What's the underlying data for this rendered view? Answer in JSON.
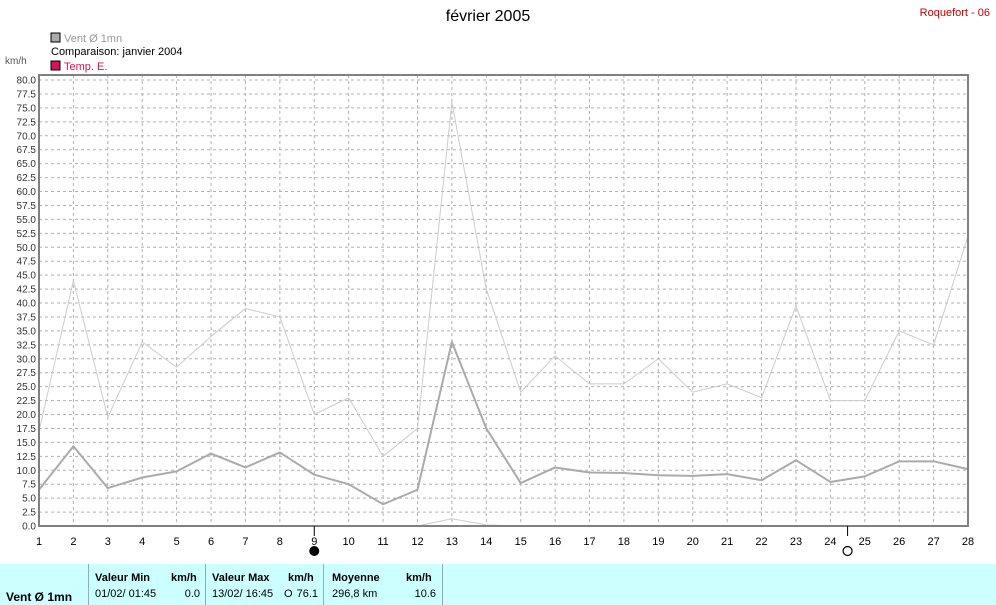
{
  "title": "février 2005",
  "station": "Roquefort - 06",
  "legend": [
    {
      "label": "Vent Ø 1mn",
      "color": "#aaaaaa",
      "text_color": "#999999"
    },
    {
      "label": "Comparaison: janvier 2004",
      "color": null,
      "text_color": "#000000"
    },
    {
      "label": "Temp. E.",
      "color": "#d4145a",
      "text_color": "#d4145a"
    }
  ],
  "chart_data": {
    "type": "line",
    "ylabel": "km/h",
    "ylim": [
      0,
      80
    ],
    "ytick_step": 2.5,
    "x": [
      1,
      2,
      3,
      4,
      5,
      6,
      7,
      8,
      9,
      10,
      11,
      12,
      13,
      14,
      15,
      16,
      17,
      18,
      19,
      20,
      21,
      22,
      23,
      24,
      25,
      26,
      27,
      28
    ],
    "xlim": [
      1,
      28
    ],
    "grid": true,
    "series": [
      {
        "name": "Vent Ø 1mn",
        "color": "#aaaaaa",
        "width": 2,
        "values": [
          6.5,
          14.3,
          6.8,
          8.7,
          9.8,
          13.0,
          10.5,
          13.2,
          9.2,
          7.5,
          3.9,
          6.5,
          33.0,
          17.5,
          7.7,
          10.5,
          9.6,
          9.5,
          9.1,
          9.0,
          9.3,
          8.2,
          11.8,
          7.9,
          8.9,
          11.6,
          11.6,
          10.2
        ]
      },
      {
        "name": "Comparaison: janvier 2004",
        "color": "#cccccc",
        "width": 1,
        "values": [
          17.0,
          44.0,
          19.5,
          33.0,
          28.5,
          34.0,
          39.0,
          37.5,
          20.0,
          23.0,
          12.5,
          17.5,
          76.0,
          42.5,
          24.0,
          30.5,
          25.5,
          25.5,
          30.0,
          24.0,
          25.5,
          23.0,
          39.5,
          22.5,
          22.5,
          35.0,
          32.5,
          52.0
        ]
      },
      {
        "name": "",
        "color": "#cccccc",
        "width": 1,
        "x": [
          12,
          13,
          14,
          15
        ],
        "values": [
          0.0,
          1.3,
          0.2,
          0.0
        ]
      }
    ],
    "markers": [
      {
        "x": 9,
        "type": "filled-circle"
      },
      {
        "x": 24.5,
        "type": "open-circle"
      }
    ]
  },
  "stats": {
    "series_label": "Vent Ø 1mn",
    "min": {
      "header": "Valeur Min",
      "unit": "km/h",
      "when": "01/02/  01:45",
      "value": "0.0"
    },
    "max": {
      "header": "Valeur Max",
      "unit": "km/h",
      "when": "13/02/  16:45",
      "dir": "O",
      "value": "76.1"
    },
    "mean": {
      "header": "Moyenne",
      "unit": "km/h",
      "distance": "296,8 km",
      "value": "10.6"
    }
  }
}
